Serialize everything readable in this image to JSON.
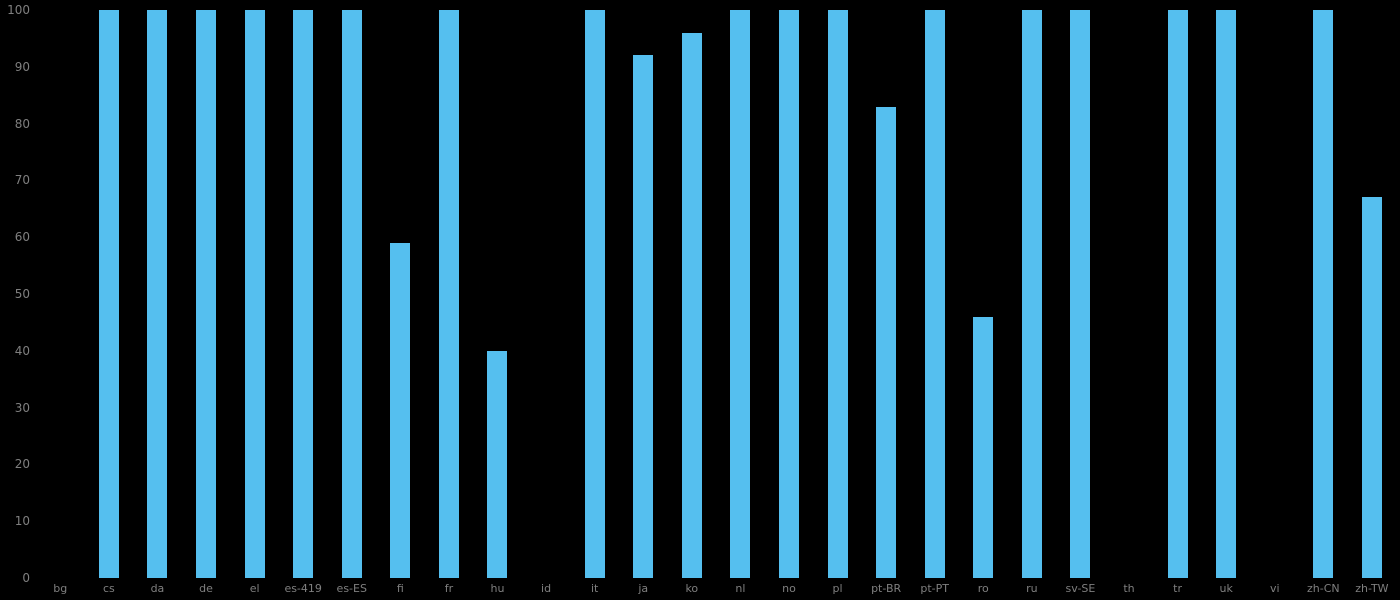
{
  "chart_data": {
    "type": "bar",
    "title": "",
    "xlabel": "",
    "ylabel": "",
    "ylim": [
      0,
      100
    ],
    "yticks": [
      0,
      10,
      20,
      30,
      40,
      50,
      60,
      70,
      80,
      90,
      100
    ],
    "grid": false,
    "legend_position": "none",
    "categories": [
      "bg",
      "cs",
      "da",
      "de",
      "el",
      "es-419",
      "es-ES",
      "fi",
      "fr",
      "hu",
      "id",
      "it",
      "ja",
      "ko",
      "nl",
      "no",
      "pl",
      "pt-BR",
      "pt-PT",
      "ro",
      "ru",
      "sv-SE",
      "th",
      "tr",
      "uk",
      "vi",
      "zh-CN",
      "zh-TW"
    ],
    "values": [
      0,
      100,
      100,
      100,
      100,
      100,
      100,
      59,
      100,
      40,
      0,
      100,
      92,
      96,
      100,
      100,
      100,
      83,
      100,
      46,
      100,
      100,
      0,
      100,
      100,
      0,
      100,
      67
    ],
    "colors": {
      "bar": "#55bfef",
      "axis_text": "#7f7f7f",
      "background": "#000000"
    }
  }
}
